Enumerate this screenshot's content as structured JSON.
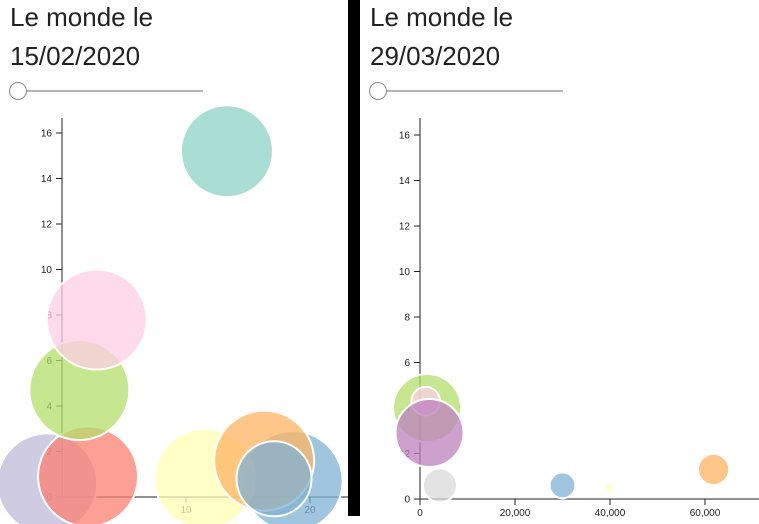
{
  "left": {
    "title_line1": "Le monde le",
    "title_line2": "15/02/2020",
    "slider": {
      "value": 0
    }
  },
  "right": {
    "title_line1": "Le monde le",
    "title_line2": "29/03/2020",
    "slider": {
      "value": 0
    }
  },
  "chart_data": [
    {
      "type": "scatter",
      "title": "",
      "xlabel": "",
      "ylabel": "",
      "ylim": [
        0,
        16.8
      ],
      "y_ticks": [
        "0",
        "2",
        "4",
        "6",
        "8",
        "10",
        "12",
        "14",
        "16"
      ],
      "x_ticks": [
        "10",
        "20"
      ],
      "points": [
        {
          "x": 18.6,
          "y": 0.7,
          "r": 1.0,
          "color": "#80b1d3"
        },
        {
          "x": -1.2,
          "y": 0.6,
          "r": 1.0,
          "color": "#bebada"
        },
        {
          "x": 2.1,
          "y": 0.9,
          "r": 1.0,
          "color": "#fb8072"
        },
        {
          "x": 1.4,
          "y": 4.7,
          "r": 1.0,
          "color": "#b3de69"
        },
        {
          "x": 2.8,
          "y": 7.8,
          "r": 1.0,
          "color": "#fccde5"
        },
        {
          "x": 11.5,
          "y": 0.8,
          "r": 1.0,
          "color": "#ffffb3"
        },
        {
          "x": 16.3,
          "y": 1.6,
          "r": 1.0,
          "color": "#fdb462"
        },
        {
          "x": 13.3,
          "y": 15.2,
          "r": 0.92,
          "color": "#8dd3c7"
        },
        {
          "x": 17.1,
          "y": 0.8,
          "r": 0.75,
          "color": "#80b1d3"
        }
      ]
    },
    {
      "type": "scatter",
      "title": "",
      "xlabel": "",
      "ylabel": "",
      "ylim": [
        0,
        16.8
      ],
      "xlim": [
        0,
        72000
      ],
      "y_ticks": [
        "0",
        "2",
        "4",
        "6",
        "8",
        "10",
        "12",
        "14",
        "16"
      ],
      "x_ticks": [
        "0",
        "20,000",
        "40,000",
        "60,000"
      ],
      "points": [
        {
          "x": 1500,
          "y": 4.0,
          "r": 1.0,
          "color": "#b3de69"
        },
        {
          "x": 1200,
          "y": 4.3,
          "r": 0.42,
          "color": "#fccde5"
        },
        {
          "x": 2000,
          "y": 2.9,
          "r": 1.0,
          "color": "#bc80bd"
        },
        {
          "x": 4200,
          "y": 0.6,
          "r": 0.5,
          "color": "#d9d9d9"
        },
        {
          "x": 30000,
          "y": 0.6,
          "r": 0.38,
          "color": "#80b1d3"
        },
        {
          "x": 40000,
          "y": 0.5,
          "r": 0.14,
          "color": "#ffffb3"
        },
        {
          "x": 61800,
          "y": 1.3,
          "r": 0.46,
          "color": "#fdb462"
        }
      ]
    }
  ]
}
